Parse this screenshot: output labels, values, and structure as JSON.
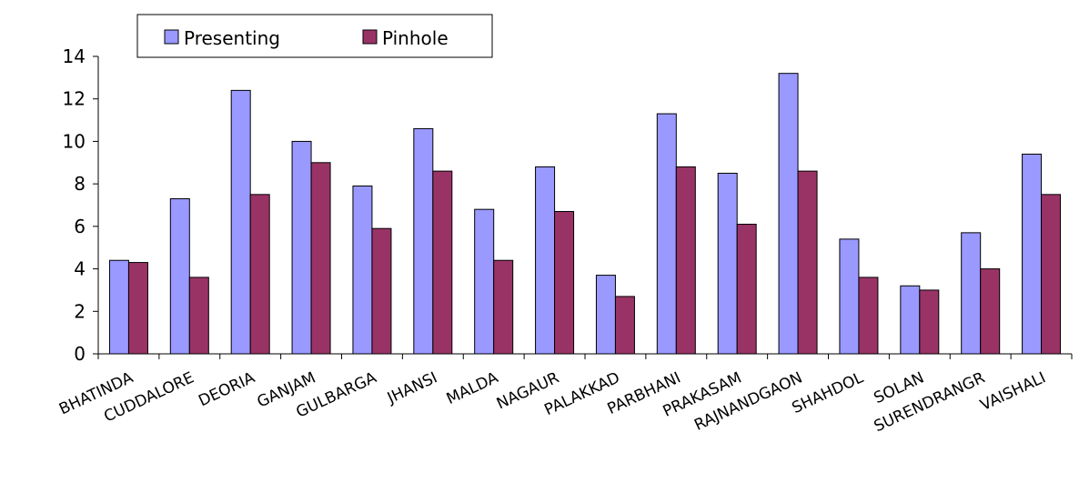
{
  "chart_data": {
    "type": "bar",
    "categories": [
      "BHATINDA",
      "CUDDALORE",
      "DEORIA",
      "GANJAM",
      "GULBARGA",
      "JHANSI",
      "MALDA",
      "NAGAUR",
      "PALAKKAD",
      "PARBHANI",
      "PRAKASAM",
      "RAJNANDGAON",
      "SHAHDOL",
      "SOLAN",
      "SURENDRANGR",
      "VAISHALI"
    ],
    "series": [
      {
        "name": "Presenting",
        "color": "#9999ff",
        "values": [
          4.4,
          7.3,
          12.4,
          10.0,
          7.9,
          10.6,
          6.8,
          8.8,
          3.7,
          11.3,
          8.5,
          13.2,
          5.4,
          3.2,
          5.7,
          9.4
        ]
      },
      {
        "name": "Pinhole",
        "color": "#993366",
        "values": [
          4.3,
          3.6,
          7.5,
          9.0,
          5.9,
          8.6,
          4.4,
          6.7,
          2.7,
          8.8,
          6.1,
          8.6,
          3.6,
          3.0,
          4.0,
          7.5
        ]
      }
    ],
    "ylim": [
      0,
      14
    ],
    "yticks": [
      0,
      2,
      4,
      6,
      8,
      10,
      12,
      14
    ],
    "ytick_labels": [
      "0",
      "2",
      "4",
      "6",
      "8",
      "10",
      "12",
      "14"
    ],
    "grid": false,
    "legend_position": "top-center"
  }
}
